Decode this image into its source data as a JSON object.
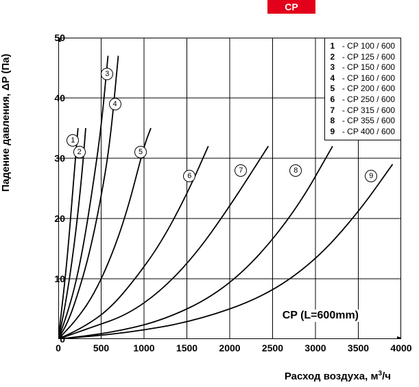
{
  "tab_label": "CP",
  "chart": {
    "type": "line",
    "title_inside": "CP (L=600mm)",
    "xlabel_pre": "Расход воздуха,  м",
    "xlabel_sup": "3",
    "xlabel_post": "/ч",
    "ylabel": "Падение  давления,  ΔP  (Па)",
    "xlim": [
      0,
      4000
    ],
    "ylim": [
      0,
      50
    ],
    "xtick_step": 500,
    "ytick_step": 10,
    "xticks": [
      0,
      500,
      1000,
      1500,
      2000,
      2500,
      3000,
      3500,
      4000
    ],
    "yticks": [
      0,
      10,
      20,
      30,
      40,
      50
    ],
    "background_color": "#ffffff",
    "grid_color": "#000000",
    "axis_color": "#000000",
    "line_color": "#000000",
    "line_width": 1.8,
    "legend": {
      "items": [
        {
          "n": "1",
          "label": "CP 100 / 600"
        },
        {
          "n": "2",
          "label": "CP 125 / 600"
        },
        {
          "n": "3",
          "label": "CP 150 / 600"
        },
        {
          "n": "4",
          "label": "CP 160 / 600"
        },
        {
          "n": "5",
          "label": "CP 200 / 600"
        },
        {
          "n": "6",
          "label": "CP 250 / 600"
        },
        {
          "n": "7",
          "label": "CP 315 / 600"
        },
        {
          "n": "8",
          "label": "CP 355 / 600"
        },
        {
          "n": "9",
          "label": "CP 400 / 600"
        }
      ]
    },
    "series": [
      {
        "id": "1",
        "marker_at": [
          170,
          33
        ],
        "points": [
          [
            0,
            0
          ],
          [
            40,
            5
          ],
          [
            80,
            10
          ],
          [
            120,
            16
          ],
          [
            160,
            23
          ],
          [
            200,
            30
          ],
          [
            230,
            35
          ]
        ]
      },
      {
        "id": "2",
        "marker_at": [
          245,
          31
        ],
        "points": [
          [
            0,
            0
          ],
          [
            60,
            4
          ],
          [
            120,
            9
          ],
          [
            180,
            15
          ],
          [
            230,
            21
          ],
          [
            280,
            28
          ],
          [
            320,
            35
          ]
        ]
      },
      {
        "id": "3",
        "marker_at": [
          570,
          44
        ],
        "points": [
          [
            0,
            0
          ],
          [
            100,
            4
          ],
          [
            200,
            9
          ],
          [
            300,
            16
          ],
          [
            400,
            25
          ],
          [
            500,
            35
          ],
          [
            580,
            47
          ]
        ]
      },
      {
        "id": "4",
        "marker_at": [
          660,
          39
        ],
        "points": [
          [
            0,
            0
          ],
          [
            120,
            3
          ],
          [
            240,
            8
          ],
          [
            360,
            14
          ],
          [
            480,
            22
          ],
          [
            600,
            32
          ],
          [
            700,
            47
          ]
        ]
      },
      {
        "id": "5",
        "marker_at": [
          960,
          31
        ],
        "points": [
          [
            0,
            0
          ],
          [
            200,
            3
          ],
          [
            400,
            7
          ],
          [
            600,
            13
          ],
          [
            800,
            21
          ],
          [
            1000,
            32
          ],
          [
            1080,
            35
          ]
        ]
      },
      {
        "id": "6",
        "marker_at": [
          1530,
          27
        ],
        "points": [
          [
            0,
            0
          ],
          [
            300,
            2
          ],
          [
            600,
            5
          ],
          [
            900,
            10
          ],
          [
            1200,
            16
          ],
          [
            1500,
            24
          ],
          [
            1750,
            32
          ]
        ]
      },
      {
        "id": "7",
        "marker_at": [
          2130,
          28
        ],
        "points": [
          [
            0,
            0
          ],
          [
            400,
            2
          ],
          [
            800,
            4
          ],
          [
            1200,
            8
          ],
          [
            1600,
            14
          ],
          [
            2000,
            22
          ],
          [
            2450,
            32
          ]
        ]
      },
      {
        "id": "8",
        "marker_at": [
          2770,
          28
        ],
        "points": [
          [
            0,
            0
          ],
          [
            600,
            1
          ],
          [
            1200,
            3
          ],
          [
            1800,
            7
          ],
          [
            2300,
            13
          ],
          [
            2800,
            22
          ],
          [
            3200,
            32
          ]
        ]
      },
      {
        "id": "9",
        "marker_at": [
          3650,
          27
        ],
        "points": [
          [
            0,
            0
          ],
          [
            800,
            1
          ],
          [
            1600,
            3
          ],
          [
            2400,
            7
          ],
          [
            3000,
            13
          ],
          [
            3500,
            21
          ],
          [
            3900,
            29
          ]
        ]
      }
    ]
  }
}
